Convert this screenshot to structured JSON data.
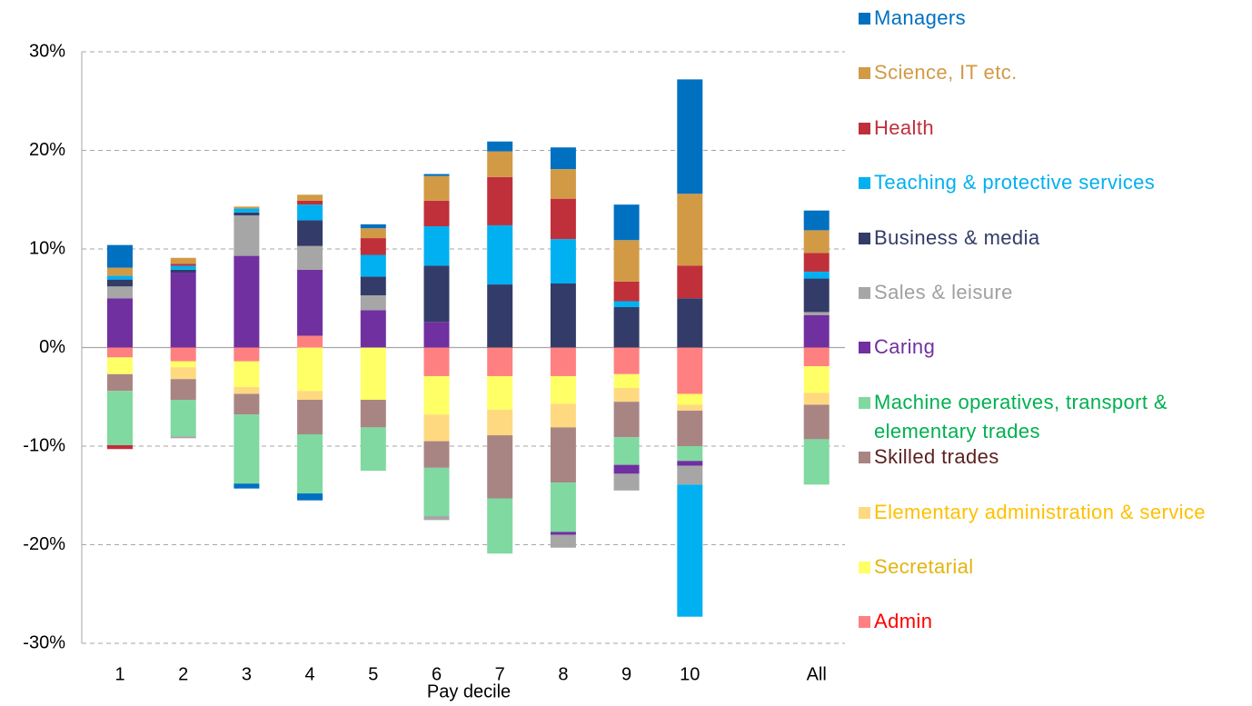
{
  "chart_data": {
    "type": "stacked_bar",
    "x_label": "Pay decile",
    "categories": [
      "1",
      "2",
      "3",
      "4",
      "5",
      "6",
      "7",
      "8",
      "9",
      "10",
      null,
      "All"
    ],
    "ylim": [
      -30,
      30
    ],
    "yticks": [
      {
        "value": -30,
        "label": "-30%"
      },
      {
        "value": -20,
        "label": "-20%"
      },
      {
        "value": -10,
        "label": "-10%"
      },
      {
        "value": 0,
        "label": "0%"
      },
      {
        "value": 10,
        "label": "10%"
      },
      {
        "value": 20,
        "label": "20%"
      },
      {
        "value": 30,
        "label": "30%"
      }
    ],
    "grid": true,
    "legend": "right",
    "series": [
      {
        "name": "Managers",
        "color": "#0070c0",
        "label_color": "#0070c0",
        "values": [
          2.3,
          0,
          -0.5,
          -0.7,
          0.4,
          0.2,
          1.0,
          2.2,
          3.6,
          11.6,
          null,
          2.0
        ]
      },
      {
        "name": "Science, IT etc.",
        "color": "#d29a45",
        "label_color": "#d29a45",
        "values": [
          0.8,
          0.6,
          0.2,
          0.6,
          1.0,
          2.5,
          2.6,
          3.0,
          4.2,
          7.3,
          null,
          2.3
        ]
      },
      {
        "name": "Health",
        "color": "#c0303a",
        "label_color": "#c0303a",
        "values": [
          -0.4,
          0.2,
          0,
          0.4,
          1.7,
          2.6,
          4.9,
          4.1,
          2.0,
          3.3,
          null,
          1.9
        ]
      },
      {
        "name": "Teaching & protective services",
        "color": "#00b0f0",
        "label_color": "#00b0f0",
        "values": [
          0.4,
          0.4,
          0.4,
          1.6,
          2.2,
          4.0,
          6.0,
          4.5,
          0.6,
          -13.4,
          null,
          0.7
        ]
      },
      {
        "name": "Business & media",
        "color": "#333c68",
        "label_color": "#333c68",
        "values": [
          0.7,
          0.3,
          0.3,
          2.6,
          1.9,
          5.7,
          6.4,
          6.5,
          4.1,
          5.0,
          null,
          3.4
        ]
      },
      {
        "name": "Sales & leisure",
        "color": "#a6a6a6",
        "label_color": "#a0a0a0",
        "values": [
          1.2,
          -0.2,
          4.1,
          2.4,
          1.5,
          -0.4,
          0,
          -1.3,
          -1.7,
          -1.9,
          null,
          0.3
        ]
      },
      {
        "name": "Caring",
        "color": "#7030a0",
        "label_color": "#7030a0",
        "values": [
          5.0,
          7.6,
          9.3,
          6.7,
          3.8,
          2.6,
          0,
          -0.3,
          -0.9,
          -0.5,
          null,
          3.3
        ]
      },
      {
        "name": "Machine operatives, transport & elementary trades",
        "color": "#7fd9a0",
        "label_color": "#00b050",
        "values": [
          -5.5,
          -3.7,
          -7.0,
          -6.0,
          -4.4,
          -4.9,
          -5.6,
          -5.0,
          -2.8,
          -1.5,
          null,
          -4.6
        ]
      },
      {
        "name": "Skilled trades",
        "color": "#a88583",
        "label_color": "#5c2020",
        "values": [
          -1.7,
          -2.1,
          -2.1,
          -3.5,
          -2.8,
          -2.7,
          -6.4,
          -5.6,
          -3.6,
          -3.6,
          null,
          -3.5
        ]
      },
      {
        "name": "Elementary administration & service",
        "color": "#ffd980",
        "label_color": "#ffc000",
        "values": [
          0,
          -1.2,
          -0.7,
          -0.9,
          0,
          -2.7,
          -2.6,
          -2.4,
          -1.4,
          -0.6,
          null,
          -1.2
        ]
      },
      {
        "name": "Secretarial",
        "color": "#ffff66",
        "label_color": "#e3b50f",
        "values": [
          -1.7,
          -0.6,
          -2.6,
          -4.4,
          -5.3,
          -3.9,
          -3.4,
          -2.8,
          -1.4,
          -1.1,
          null,
          -2.7
        ]
      },
      {
        "name": "Admin",
        "color": "#ff8080",
        "label_color": "#ff0000",
        "values": [
          -1.0,
          -1.4,
          -1.4,
          1.2,
          0,
          -2.9,
          -2.9,
          -2.9,
          -2.7,
          -4.7,
          null,
          -1.9
        ]
      }
    ]
  }
}
